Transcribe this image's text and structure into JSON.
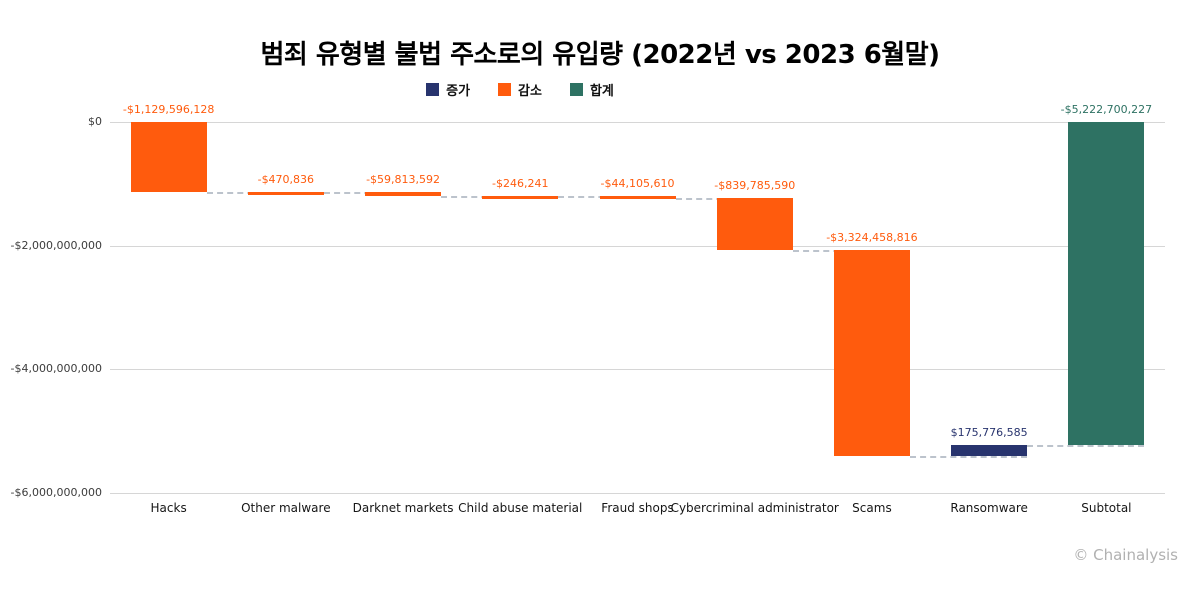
{
  "chart_data": {
    "type": "bar",
    "subtype": "waterfall",
    "title": "범죄 유형별 불법 주소로의 유입량 (2022년 vs 2023 6월말)",
    "categories": [
      "Hacks",
      "Other malware",
      "Darknet markets",
      "Child abuse material",
      "Fraud shops",
      "Cybercriminal administrator",
      "Scams",
      "Ransomware",
      "Subtotal"
    ],
    "values": [
      -1129596128,
      -470836,
      -59813592,
      -246241,
      -44105610,
      -839785590,
      -3324458816,
      175776585,
      -5222700227
    ],
    "value_labels": [
      "-$1,129,596,128",
      "-$470,836",
      "-$59,813,592",
      "-$246,241",
      "-$44,105,610",
      "-$839,785,590",
      "-$3,324,458,816",
      "$175,776,585",
      "-$5,222,700,227"
    ],
    "kinds": [
      "decrease",
      "decrease",
      "decrease",
      "decrease",
      "decrease",
      "decrease",
      "decrease",
      "increase",
      "total"
    ],
    "legend": [
      {
        "key": "increase",
        "label": "증가",
        "color": "#28346E"
      },
      {
        "key": "decrease",
        "label": "감소",
        "color": "#FF5B0D"
      },
      {
        "key": "total",
        "label": "합계",
        "color": "#2E7263"
      }
    ],
    "colors": {
      "increase": "#28346E",
      "decrease": "#FF5B0D",
      "total": "#2E7263"
    },
    "y_axis": {
      "min": -6000000000,
      "max": 0,
      "ticks": [
        {
          "value": 0,
          "label": "$0"
        },
        {
          "value": -2000000000,
          "label": "-$2,000,000,000"
        },
        {
          "value": -4000000000,
          "label": "-$4,000,000,000"
        },
        {
          "value": -6000000000,
          "label": "-$6,000,000,000"
        }
      ]
    },
    "grid": true,
    "legend_position": "top"
  },
  "footer": {
    "credit": "© Chainalysis"
  }
}
